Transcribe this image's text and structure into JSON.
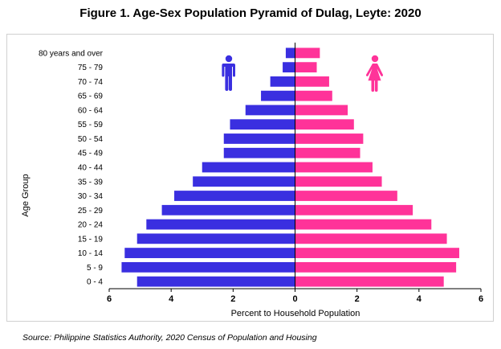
{
  "title": "Figure 1. Age-Sex Population Pyramid of Dulag, Leyte: 2020",
  "source": "Source: Philippine Statistics Authority, 2020 Census of Population and Housing",
  "colors": {
    "male": "#3a2fe0",
    "female": "#ff3399",
    "axis": "#000000"
  },
  "icons": {
    "male": "male-person-icon",
    "female": "female-person-icon"
  },
  "chart_data": {
    "type": "bar",
    "orientation": "horizontal",
    "layout": "population-pyramid",
    "title": "Figure 1. Age-Sex Population Pyramid of Dulag, Leyte: 2020",
    "xlabel": "Percent to Household Population",
    "ylabel": "Age Group",
    "xlim": [
      -6,
      6
    ],
    "xticks": [
      -6,
      -4,
      -2,
      0,
      2,
      4,
      6
    ],
    "xtick_labels": [
      "6",
      "4",
      "2",
      "0",
      "2",
      "4",
      "6"
    ],
    "categories": [
      "0 - 4",
      "5 - 9",
      "10 - 14",
      "15 - 19",
      "20 - 24",
      "25 - 29",
      "30 - 34",
      "35 - 39",
      "40 - 44",
      "45 - 49",
      "50 - 54",
      "55 - 59",
      "60 - 64",
      "65 - 69",
      "70 - 74",
      "75 - 79",
      "80 years and over"
    ],
    "series": [
      {
        "values": [
          5.1,
          5.6,
          5.5,
          5.1,
          4.8,
          4.3,
          3.9,
          3.3,
          3.0,
          2.3,
          2.3,
          2.1,
          1.6,
          1.1,
          0.8,
          0.4,
          0.3
        ]
      },
      {
        "values": [
          4.8,
          5.2,
          5.3,
          4.9,
          4.4,
          3.8,
          3.3,
          2.8,
          2.5,
          2.1,
          2.2,
          1.9,
          1.7,
          1.2,
          1.1,
          0.7,
          0.8
        ]
      }
    ],
    "grid": false,
    "legend": "none"
  }
}
